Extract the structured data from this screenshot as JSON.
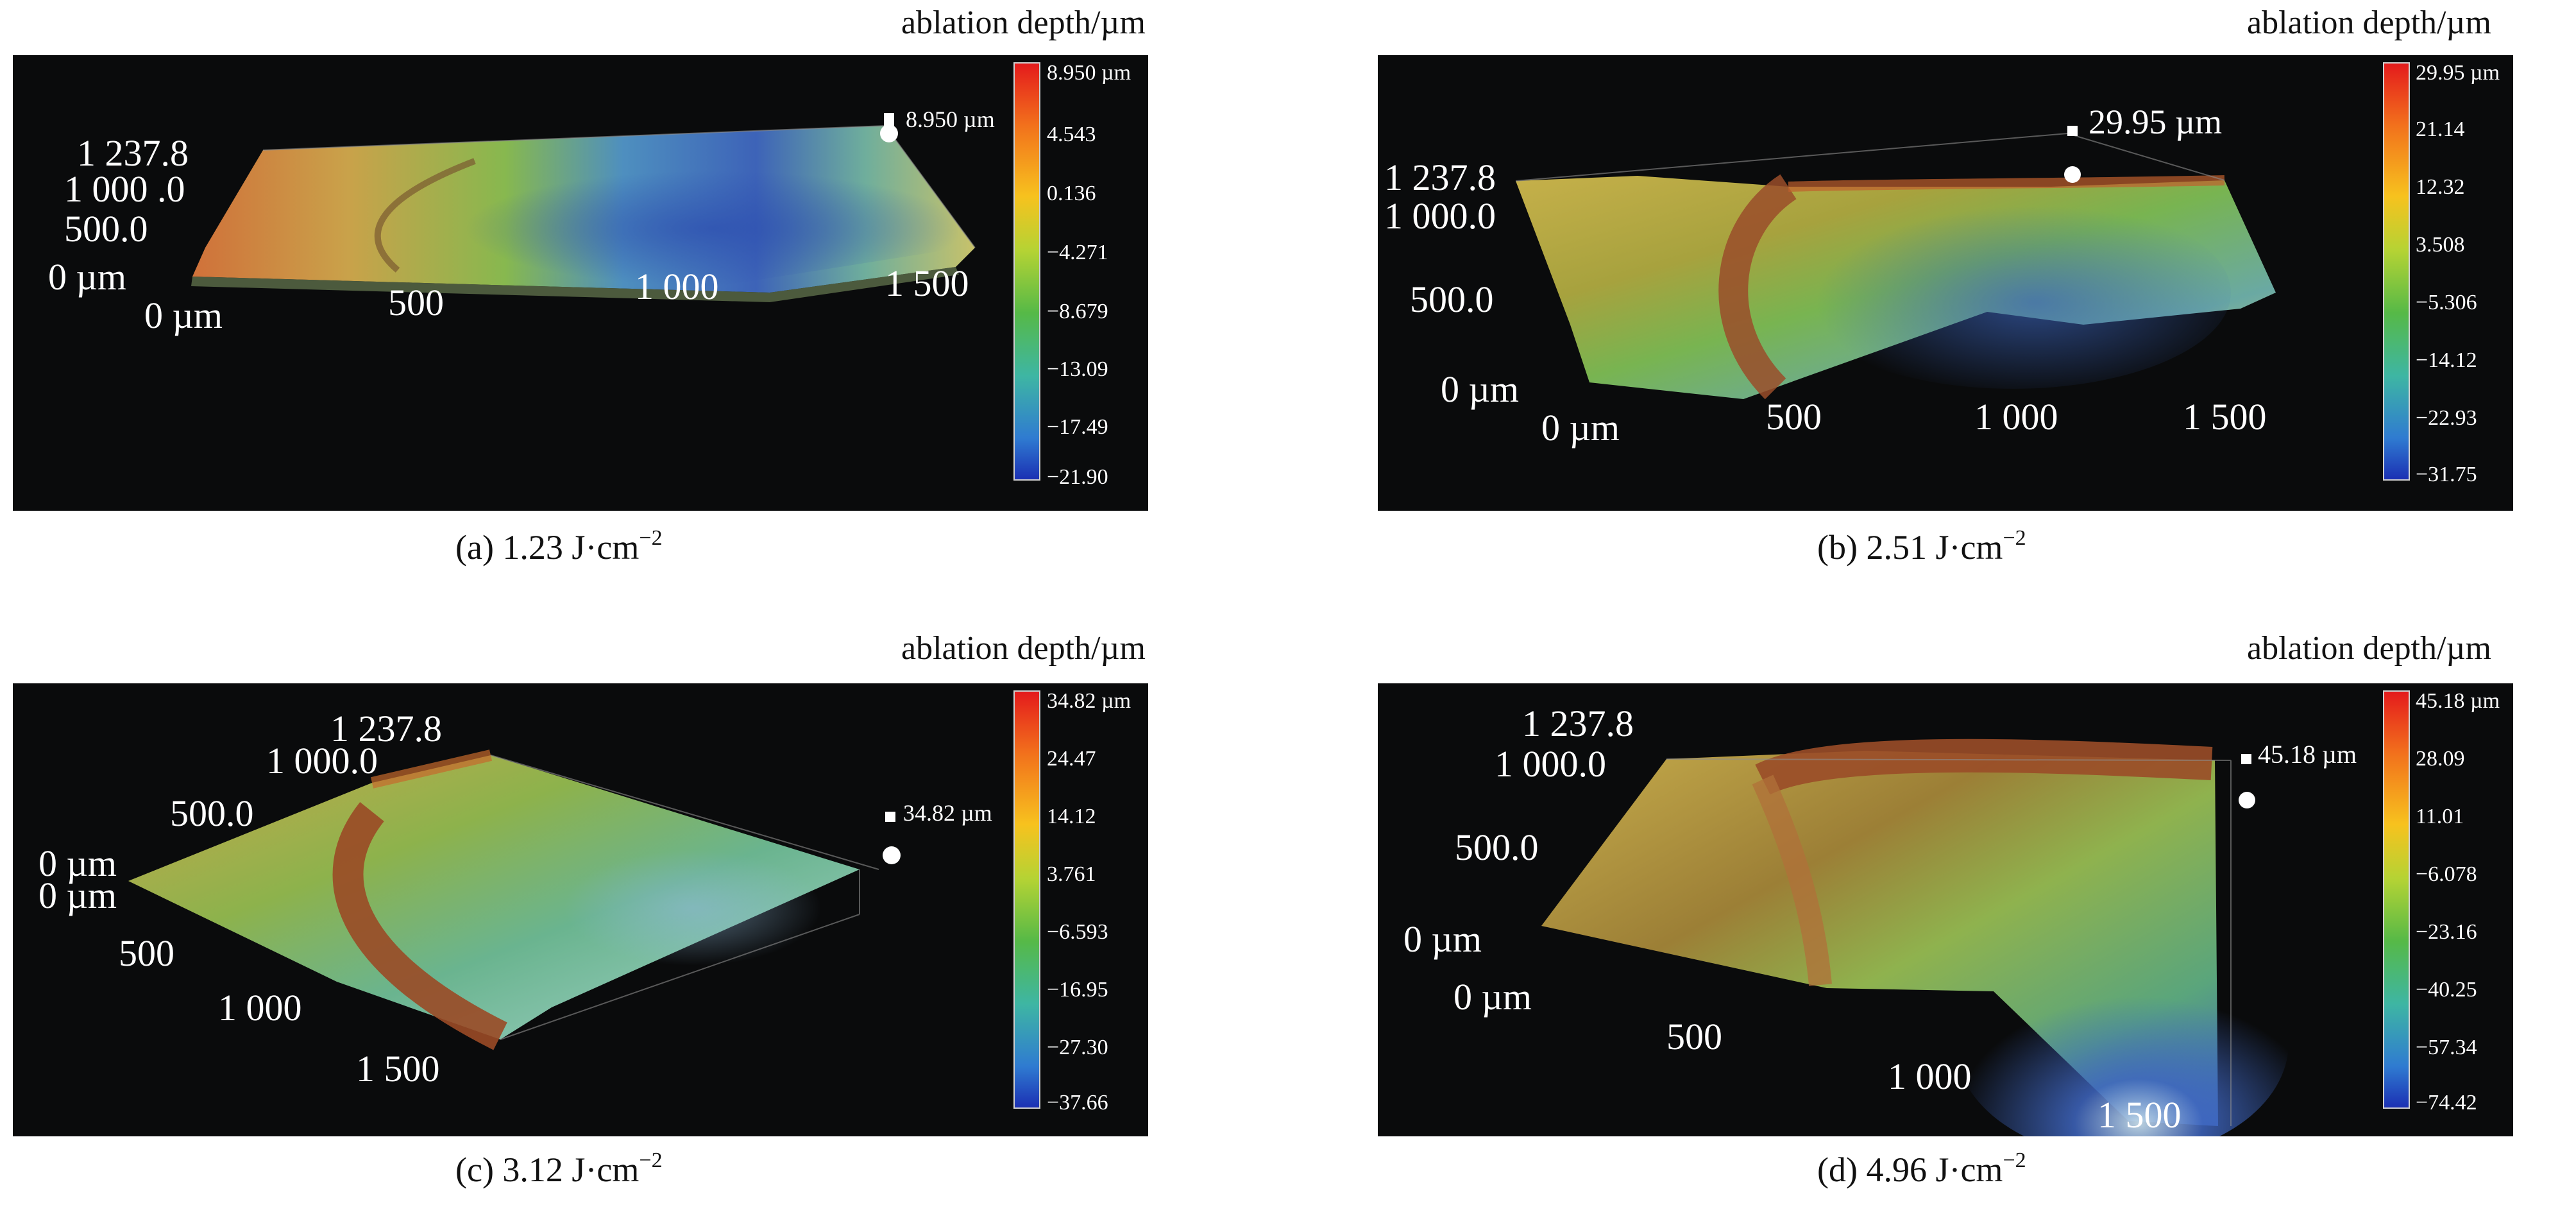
{
  "panels": [
    {
      "id": "a",
      "caption_label": "(a) 1.23 J·cm",
      "caption_exp": "−2",
      "unit_title": "ablation depth/µm",
      "max_marker": "8.950 µm",
      "colorbar_ticks": [
        "8.950 µm",
        "4.543",
        "0.136",
        "−4.271",
        "−8.679",
        "−13.09",
        "−17.49",
        "−21.90"
      ],
      "y_axis_labels": [
        "1 237.8",
        "1 000 .0",
        "500.0",
        "0 µm"
      ],
      "x_axis_labels": [
        "0 µm",
        "500",
        "1 000",
        "1 500"
      ],
      "depth_range_um": [
        -21.9,
        8.95
      ]
    },
    {
      "id": "b",
      "caption_label": "(b) 2.51 J·cm",
      "caption_exp": "−2",
      "unit_title": "ablation depth/µm",
      "max_marker": "29.95 µm",
      "colorbar_ticks": [
        "29.95 µm",
        "21.14",
        "12.32",
        "3.508",
        "−5.306",
        "−14.12",
        "−22.93",
        "−31.75"
      ],
      "y_axis_labels": [
        "1 237.8",
        "1 000.0",
        "500.0",
        "0 µm"
      ],
      "x_axis_labels": [
        "0 µm",
        "500",
        "1 000",
        "1 500"
      ],
      "depth_range_um": [
        -31.75,
        29.95
      ]
    },
    {
      "id": "c",
      "caption_label": "(c) 3.12 J·cm",
      "caption_exp": "−2",
      "unit_title": "ablation depth/µm",
      "max_marker": "34.82 µm",
      "colorbar_ticks": [
        "34.82 µm",
        "24.47",
        "14.12",
        "3.761",
        "−6.593",
        "−16.95",
        "−27.30",
        "−37.66"
      ],
      "y_axis_labels": [
        "1 237.8",
        "1 000.0",
        "500.0",
        "0 µm"
      ],
      "x_axis_labels": [
        "0 µm",
        "500",
        "1 000",
        "1 500"
      ],
      "depth_range_um": [
        -37.66,
        34.82
      ]
    },
    {
      "id": "d",
      "caption_label": "(d) 4.96 J·cm",
      "caption_exp": "−2",
      "unit_title": "ablation depth/µm",
      "max_marker": "45.18 µm",
      "colorbar_ticks": [
        "45.18 µm",
        "28.09",
        "11.01",
        "−6.078",
        "−23.16",
        "−40.25",
        "−57.34",
        "−74.42"
      ],
      "y_axis_labels": [
        "1 237.8",
        "1 000.0",
        "500.0",
        "0 µm"
      ],
      "x_axis_labels": [
        "0 µm",
        "500",
        "1 000",
        "1 500"
      ],
      "depth_range_um": [
        -74.42,
        45.18
      ]
    }
  ],
  "colors": {
    "plot_background": "#0a0b0c",
    "colormap": [
      "#e41a1c",
      "#f2711c",
      "#f7c21e",
      "#b5d334",
      "#56b947",
      "#3eb6a3",
      "#2f7bd1",
      "#1b2fb3"
    ],
    "surface_high": "#c9692a",
    "surface_mid": "#a3c244",
    "surface_low": "#2d56b4",
    "text_on_plot": "#ffffff"
  }
}
